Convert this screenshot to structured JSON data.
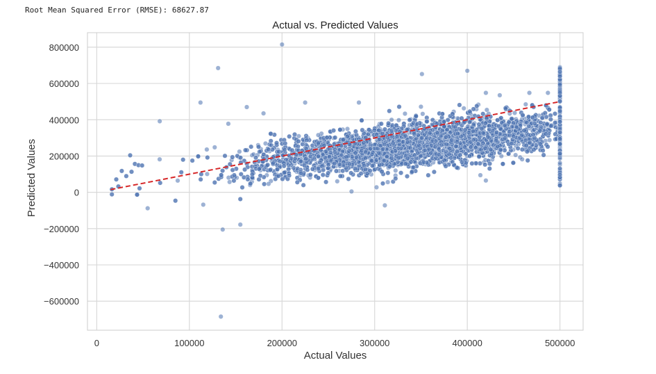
{
  "output": {
    "rmse_line": "Root Mean Squared Error (RMSE): 68627.87"
  },
  "chart_data": {
    "type": "scatter",
    "title": "Actual vs. Predicted Values",
    "xlabel": "Actual Values",
    "ylabel": "Predicted Values",
    "xlim": [
      -10000,
      525000
    ],
    "ylim": [
      -760000,
      880000
    ],
    "xticks": [
      0,
      100000,
      200000,
      300000,
      400000,
      500000
    ],
    "xtick_labels": [
      "0",
      "100000",
      "200000",
      "300000",
      "400000",
      "500000"
    ],
    "yticks": [
      -600000,
      -400000,
      -200000,
      0,
      200000,
      400000,
      600000,
      800000
    ],
    "ytick_labels": [
      "−600000",
      "−400000",
      "−200000",
      "0",
      "200000",
      "400000",
      "600000",
      "800000"
    ],
    "grid": true,
    "point_color": "#4c72b0",
    "reference_line": {
      "x": [
        15000,
        500000
      ],
      "y": [
        15000,
        500000
      ],
      "color": "#d62728",
      "style": "dashed"
    },
    "outliers": [
      {
        "x": 200000,
        "y": 815000
      },
      {
        "x": 131000,
        "y": 685000
      },
      {
        "x": 351000,
        "y": 652000
      },
      {
        "x": 400000,
        "y": 670000
      },
      {
        "x": 112000,
        "y": 495000
      },
      {
        "x": 162000,
        "y": 470000
      },
      {
        "x": 225000,
        "y": 495000
      },
      {
        "x": 350000,
        "y": 472000
      },
      {
        "x": 283000,
        "y": 495000
      },
      {
        "x": 420000,
        "y": 548000
      },
      {
        "x": 435000,
        "y": 535000
      },
      {
        "x": 467000,
        "y": 548000
      },
      {
        "x": 487000,
        "y": 548000
      },
      {
        "x": 68000,
        "y": 392000
      },
      {
        "x": 142000,
        "y": 378000
      },
      {
        "x": 180000,
        "y": 435000
      },
      {
        "x": 55000,
        "y": -88000
      },
      {
        "x": 115000,
        "y": -68000
      },
      {
        "x": 136000,
        "y": -205000
      },
      {
        "x": 155000,
        "y": -178000
      },
      {
        "x": 311000,
        "y": -72000
      },
      {
        "x": 134000,
        "y": -685000
      },
      {
        "x": 275000,
        "y": 5000
      },
      {
        "x": 302000,
        "y": 28000
      },
      {
        "x": 420000,
        "y": 65000
      }
    ],
    "cluster": {
      "x_range": [
        15000,
        500000
      ],
      "trend_intercept": 60000,
      "trend_slope": 0.58,
      "spread_sd": 62000,
      "count": 5000,
      "cap_column": {
        "x": 500000,
        "y_range": [
          30000,
          690000
        ],
        "count": 160
      }
    }
  }
}
